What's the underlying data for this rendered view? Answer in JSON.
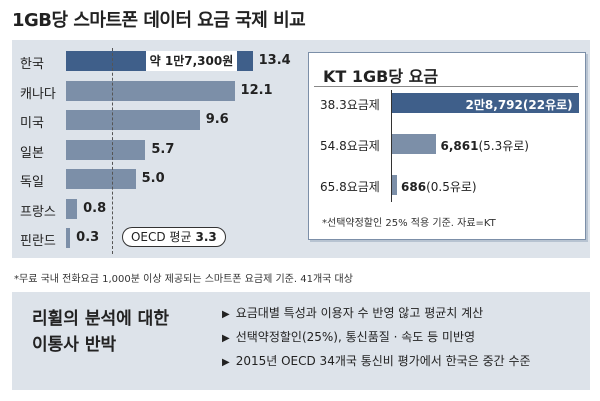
{
  "title": "1GB당 스마트폰 데이터 요금 국제 비교",
  "chart_data": [
    {
      "type": "bar",
      "orientation": "horizontal",
      "categories": [
        "한국",
        "캐나다",
        "미국",
        "일본",
        "독일",
        "프랑스",
        "핀란드"
      ],
      "values": [
        13.4,
        12.1,
        9.6,
        5.7,
        5.0,
        0.8,
        0.3
      ],
      "value_labels": [
        "13.4",
        "12.1",
        "9.6",
        "5.7",
        "5.0",
        "0.8",
        "0.3"
      ],
      "highlight_label": "약 1만7,300원",
      "reference_line": {
        "label": "OECD 평균",
        "value": 3.3,
        "value_label": "3.3"
      },
      "xlim": [
        0,
        14
      ],
      "colors": {
        "highlight": "#3f5f8a",
        "bar": "#7c8fa8"
      }
    },
    {
      "type": "bar",
      "orientation": "horizontal",
      "title": "KT 1GB당 요금",
      "categories": [
        "38.3요금제",
        "54.8요금제",
        "65.8요금제"
      ],
      "values": [
        28792,
        6861,
        686
      ],
      "value_labels": [
        {
          "main": "2만8,792",
          "sub": "(22유로)"
        },
        {
          "main": "6,861",
          "sub": "(5.3유로)"
        },
        {
          "main": "686",
          "sub": "(0.5유로)"
        }
      ],
      "xlim": [
        0,
        29000
      ],
      "note": "*선택약정할인 25% 적용 기준. 자료=KT"
    }
  ],
  "footnote": "*무료 국내 전화요금 1,000분 이상 제공되는 스마트폰 요금제 기준. 41개국 대상",
  "rebuttal": {
    "title_line1": "리휠의 분석에 대한",
    "title_line2": "이통사 반박",
    "points": [
      "요금대별 특성과 이용자 수 반영 않고 평균치 계산",
      "선택약정할인(25%), 통신품질 · 속도 등 미반영",
      "2015년 OECD 34개국 통신비 평가에서 한국은 중간 수준"
    ],
    "bullet": "▶"
  }
}
